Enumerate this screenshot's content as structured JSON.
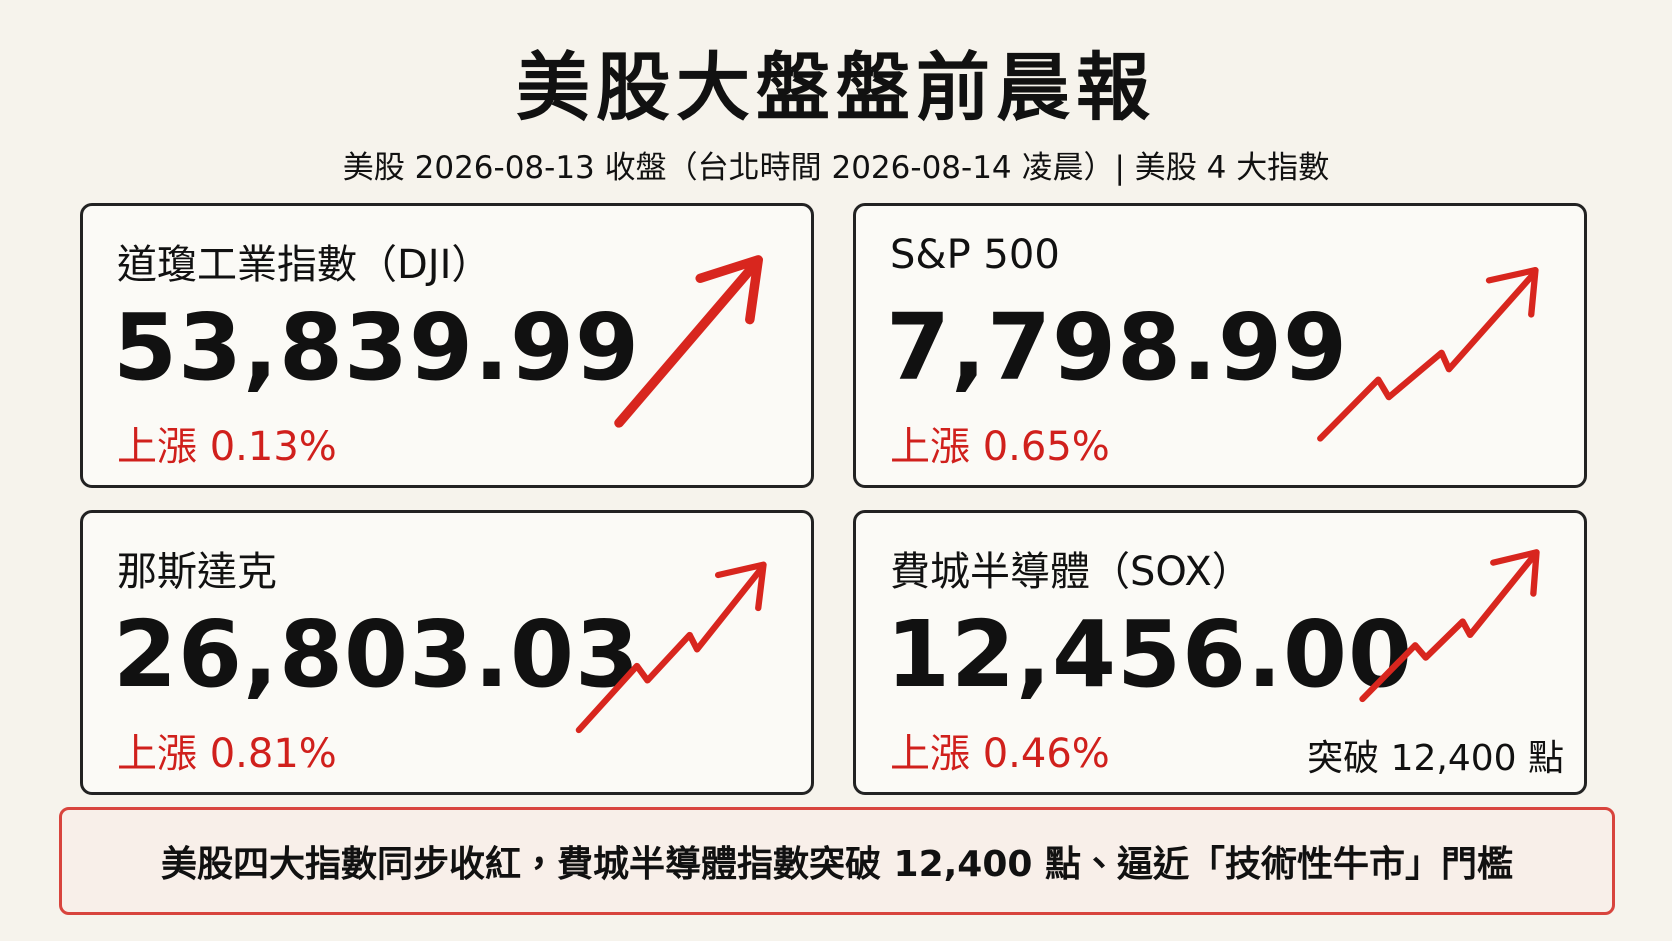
{
  "header": {
    "title": "美股大盤盤前晨報",
    "subtitle": "美股 2026-08-13 收盤（台北時間 2026-08-14 凌晨）| 美股 4 大指數"
  },
  "cards": [
    {
      "name": "道瓊工業指數（DJI）",
      "value": "53,839.99",
      "change": "上漲 0.13%"
    },
    {
      "name": "S&P 500",
      "value": "7,798.99",
      "change": "上漲 0.65%"
    },
    {
      "name": "那斯達克",
      "value": "26,803.03",
      "change": "上漲 0.81%"
    },
    {
      "name": "費城半導體（SOX）",
      "value": "12,456.00",
      "change": "上漲 0.46%",
      "note": "突破 12,400 點"
    }
  ],
  "footer": {
    "text": "美股四大指數同步收紅，費城半導體指數突破 12,400 點、逼近「技術性牛市」門檻"
  }
}
